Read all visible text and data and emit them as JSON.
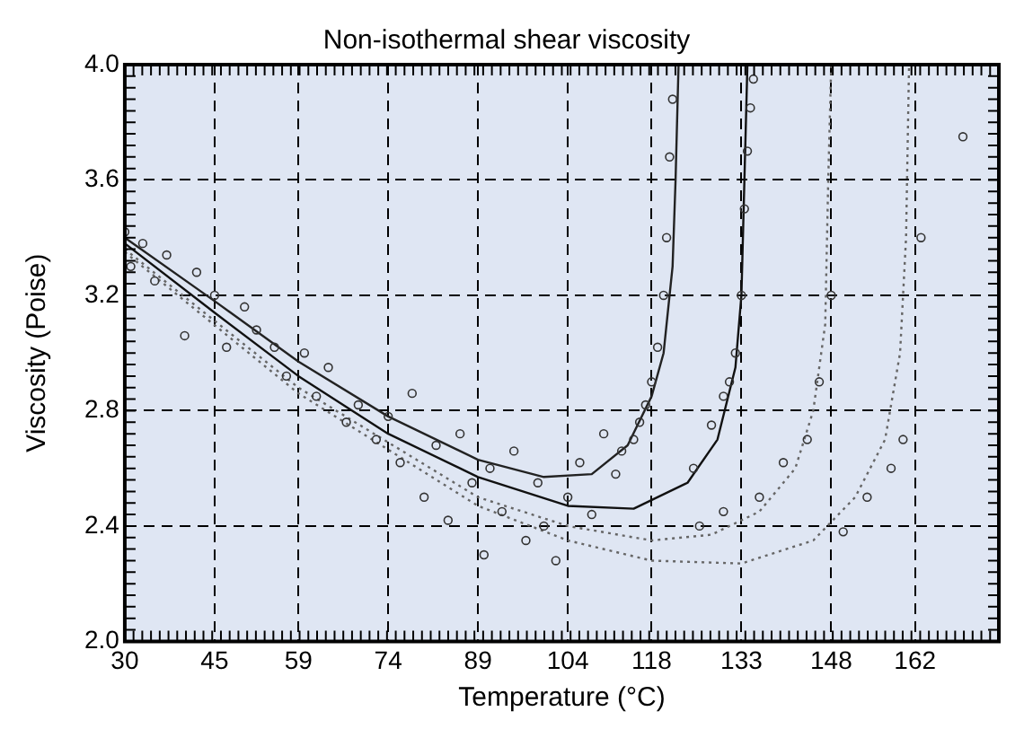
{
  "chart_data": {
    "type": "scatter",
    "title": "Non-isothermal shear viscosity",
    "xlabel": "Temperature (°C)",
    "ylabel": "Viscosity (Poise)",
    "xlim": [
      30,
      176
    ],
    "xticks": [
      30,
      45,
      59,
      74,
      89,
      104,
      118,
      133,
      148,
      162
    ],
    "ylim": [
      2.0,
      4.0
    ],
    "yticks": [
      {
        "value": 2.0,
        "label": "2.0"
      },
      2.4,
      2.8,
      3.2,
      3.6,
      {
        "value": 4.0,
        "label": "4.0"
      }
    ],
    "grid": true,
    "legend": false,
    "series": [
      {
        "marker": "circle",
        "color": "#333333",
        "x": [
          30,
          31,
          33,
          35,
          37,
          40,
          42,
          45,
          47,
          50,
          52,
          55,
          57,
          60,
          62,
          64,
          67,
          69,
          72,
          74,
          76,
          78,
          80,
          82,
          84,
          86,
          88,
          90,
          91,
          93,
          95,
          97,
          99,
          100,
          102,
          104,
          106,
          108,
          110,
          112,
          113,
          115,
          116,
          117,
          118,
          119,
          120,
          120.5,
          121,
          121.5,
          125,
          128,
          130,
          131,
          132,
          133,
          133.5,
          134,
          134.5,
          135,
          126,
          130,
          136,
          140,
          144,
          146,
          148,
          150,
          154,
          158,
          160,
          163,
          170
        ],
        "values": [
          3.42,
          3.3,
          3.38,
          3.25,
          3.34,
          3.06,
          3.28,
          3.2,
          3.02,
          3.16,
          3.08,
          3.02,
          2.92,
          3.0,
          2.85,
          2.95,
          2.76,
          2.82,
          2.7,
          2.78,
          2.62,
          2.86,
          2.5,
          2.68,
          2.42,
          2.72,
          2.55,
          2.3,
          2.6,
          2.45,
          2.66,
          2.35,
          2.55,
          2.4,
          2.28,
          2.5,
          2.62,
          2.44,
          2.72,
          2.58,
          2.66,
          2.7,
          2.76,
          2.82,
          2.9,
          3.02,
          3.2,
          3.4,
          3.68,
          3.88,
          2.6,
          2.75,
          2.85,
          2.9,
          3.0,
          3.2,
          3.5,
          3.7,
          3.85,
          3.95,
          2.4,
          2.45,
          2.5,
          2.62,
          2.7,
          2.9,
          3.2,
          2.38,
          2.5,
          2.6,
          2.7,
          3.4,
          3.75
        ]
      },
      {
        "type": "line",
        "color": "#222222",
        "line_style": "solid",
        "x": [
          30,
          45,
          59,
          74,
          89,
          100,
          108,
          114,
          118,
          120,
          121.5,
          122,
          122.5
        ],
        "values": [
          3.4,
          3.18,
          2.97,
          2.78,
          2.63,
          2.57,
          2.58,
          2.68,
          2.85,
          3.0,
          3.3,
          3.6,
          4.0
        ]
      },
      {
        "type": "line",
        "color": "#111111",
        "line_style": "solid",
        "x": [
          30,
          45,
          59,
          74,
          89,
          104,
          115,
          124,
          129,
          132,
          133,
          133.5,
          134
        ],
        "values": [
          3.38,
          3.14,
          2.92,
          2.72,
          2.57,
          2.47,
          2.46,
          2.55,
          2.7,
          2.95,
          3.2,
          3.6,
          4.0
        ]
      },
      {
        "type": "line",
        "color": "#666666",
        "line_style": "dotted",
        "x": [
          30,
          59,
          89,
          104,
          118,
          128,
          136,
          142,
          145,
          147,
          147.5,
          148
        ],
        "values": [
          3.36,
          2.88,
          2.5,
          2.4,
          2.35,
          2.37,
          2.45,
          2.6,
          2.8,
          3.1,
          3.6,
          4.0
        ]
      },
      {
        "type": "line",
        "color": "#666666",
        "line_style": "dotted",
        "x": [
          30,
          59,
          89,
          104,
          118,
          133,
          145,
          152,
          157,
          159.5,
          160.5,
          161
        ],
        "values": [
          3.35,
          2.86,
          2.47,
          2.35,
          2.28,
          2.27,
          2.35,
          2.5,
          2.7,
          3.0,
          3.4,
          4.0
        ]
      }
    ]
  }
}
